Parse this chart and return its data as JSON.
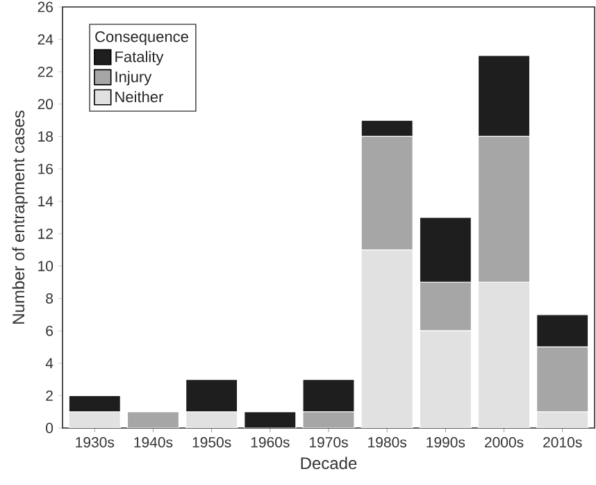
{
  "chart_data": {
    "type": "bar",
    "stacked": true,
    "xlabel": "Decade",
    "ylabel": "Number of entrapment cases",
    "legend_title": "Consequence",
    "legend": "top left",
    "categories": [
      "1930s",
      "1940s",
      "1950s",
      "1960s",
      "1970s",
      "1980s",
      "1990s",
      "2000s",
      "2010s"
    ],
    "series": [
      {
        "name": "Neither",
        "color": "#e1e1e1",
        "values": [
          1,
          0,
          1,
          0,
          0,
          11,
          6,
          9,
          1
        ]
      },
      {
        "name": "Injury",
        "color": "#a6a6a6",
        "values": [
          0,
          1,
          0,
          0,
          1,
          7,
          3,
          9,
          4
        ]
      },
      {
        "name": "Fatality",
        "color": "#1e1e1e",
        "values": [
          1,
          0,
          2,
          1,
          2,
          1,
          4,
          5,
          2
        ]
      }
    ],
    "ylim": [
      0,
      26
    ],
    "yticks": [
      0,
      2,
      4,
      6,
      8,
      10,
      12,
      14,
      16,
      18,
      20,
      22,
      24,
      26
    ],
    "grid": false
  }
}
